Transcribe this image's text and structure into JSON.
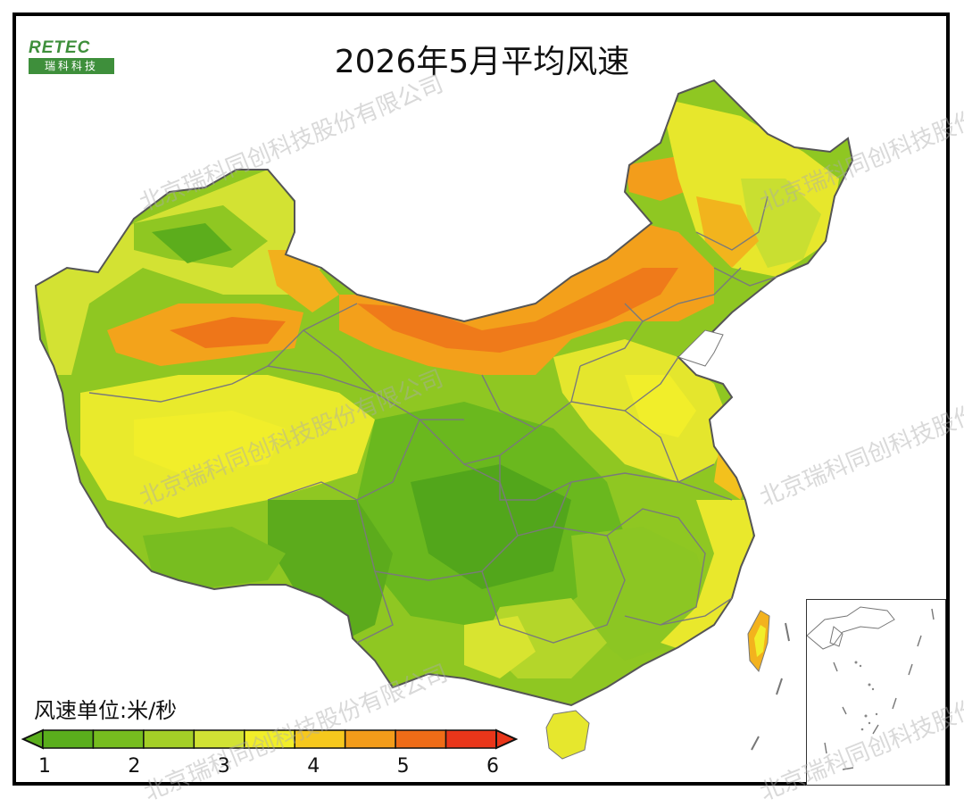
{
  "title": "2026年5月平均风速",
  "logo": {
    "top": "RETEC",
    "bottom": "瑞科科技"
  },
  "watermark": "北京瑞科同创科技股份有限公司",
  "legend": {
    "title": "风速单位:米/秒",
    "ticks": [
      "1",
      "2",
      "3",
      "4",
      "5",
      "6"
    ],
    "colors": [
      "#5aae1c",
      "#76bd1f",
      "#a4cf27",
      "#d1e234",
      "#f1ee2a",
      "#f6c81d",
      "#f39c1a",
      "#ef6c17",
      "#e9361a"
    ]
  },
  "colors": {
    "low": "#56ab1b",
    "mid_low": "#8fc722",
    "mid": "#d3e233",
    "mid_high": "#f1ea2b",
    "high": "#f4a11c",
    "very_high": "#ee6a17"
  }
}
